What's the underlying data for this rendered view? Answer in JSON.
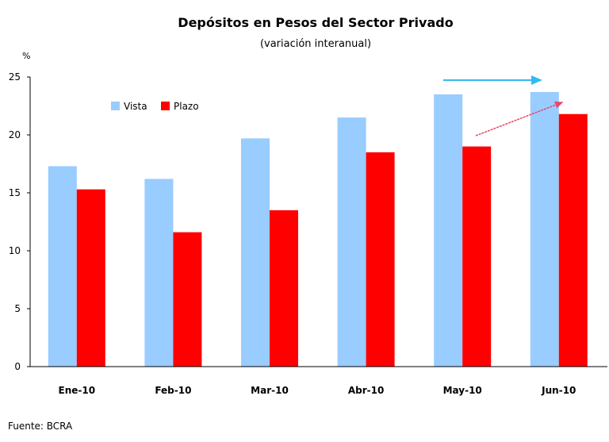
{
  "chart_data": {
    "type": "bar",
    "title": "Depósitos en Pesos del Sector Privado",
    "subtitle": "(variación interanual)",
    "ylabel": "%",
    "ylim": [
      0,
      25
    ],
    "yticks": [
      "0",
      "5",
      "10",
      "15",
      "20",
      "25"
    ],
    "categories": [
      "Ene-10",
      "Feb-10",
      "Mar-10",
      "Abr-10",
      "May-10",
      "Jun-10"
    ],
    "series": [
      {
        "name": "Vista",
        "color": "#99CCFF",
        "values": [
          17.3,
          16.2,
          19.7,
          21.5,
          23.5,
          23.7
        ]
      },
      {
        "name": "Plazo",
        "color": "#FF0000",
        "values": [
          15.3,
          11.6,
          13.5,
          18.5,
          19.0,
          21.8
        ]
      }
    ],
    "legend": "top-left",
    "grid": false,
    "annotations": [
      {
        "type": "arrow",
        "color": "#33BBEE",
        "from": "May-10 Vista",
        "to": "Jun-10 Vista"
      },
      {
        "type": "arrow",
        "color": "#EE4466",
        "from": "May-10 Plazo",
        "to": "Jun-10 Plazo"
      }
    ],
    "source": "Fuente: BCRA"
  }
}
